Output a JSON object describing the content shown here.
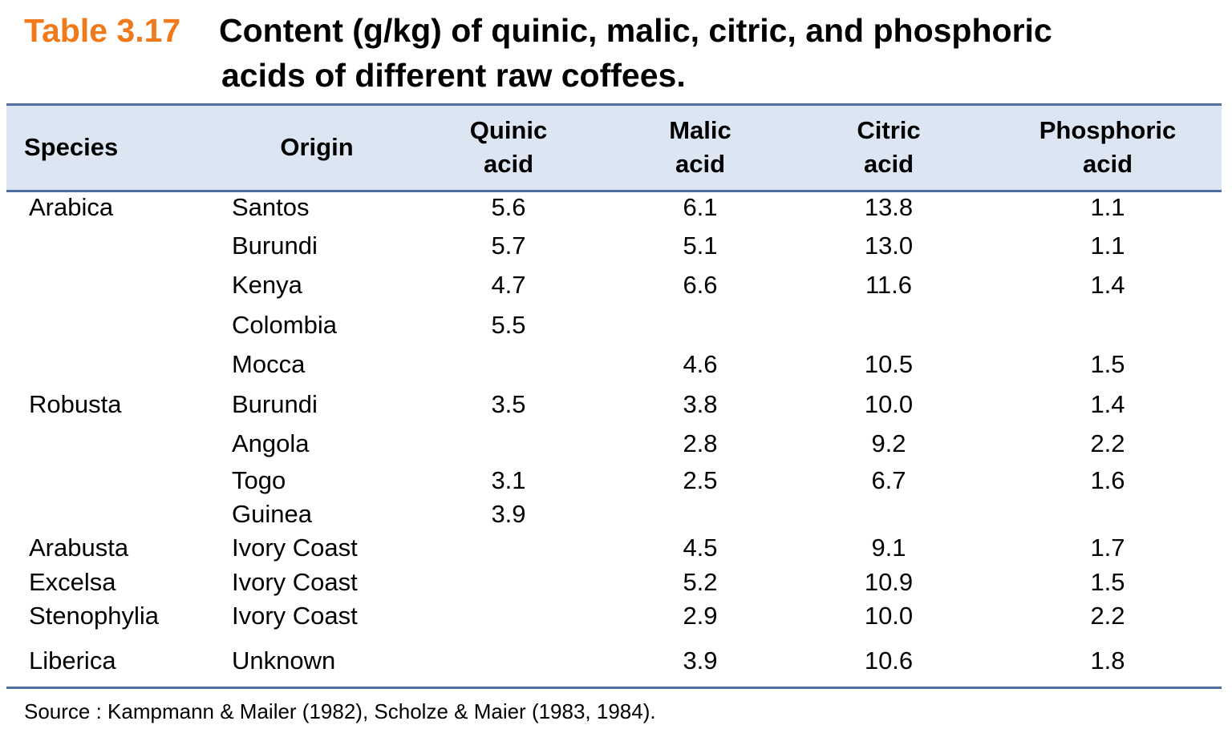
{
  "header": {
    "label": "Table 3.17",
    "title": [
      "Content (g/kg) of quinic, malic, citric, and phosphoric",
      "acids of different raw coffees."
    ]
  },
  "table": {
    "columns": [
      "Species",
      "Origin",
      "Quinic acid",
      "Malic acid",
      "Citric acid",
      "Phosphoric acid"
    ],
    "rows": [
      [
        "Arabica",
        "Santos",
        "5.6",
        "6.1",
        "13.8",
        "1.1"
      ],
      [
        null,
        "Burundi",
        "5.7",
        "5.1",
        "13.0",
        "1.1"
      ],
      [
        null,
        "Kenya",
        "4.7",
        "6.6",
        "11.6",
        "1.4"
      ],
      [
        null,
        "Colombia",
        "5.5",
        null,
        null,
        null
      ],
      [
        null,
        "Mocca",
        null,
        "4.6",
        "10.5",
        "1.5"
      ],
      [
        "Robusta",
        "Burundi",
        "3.5",
        "3.8",
        "10.0",
        "1.4"
      ],
      [
        null,
        "Angola",
        null,
        "2.8",
        "9.2",
        "2.2"
      ],
      [
        null,
        "Togo",
        "3.1",
        "2.5",
        "6.7",
        "1.6"
      ],
      [
        null,
        "Guinea",
        "3.9",
        null,
        null,
        null
      ],
      [
        "Arabusta",
        "Ivory Coast",
        null,
        "4.5",
        "9.1",
        "1.7"
      ],
      [
        "Excelsa",
        "Ivory Coast",
        null,
        "5.2",
        "10.9",
        "1.5"
      ],
      [
        "Stenophylia",
        "Ivory Coast",
        null,
        "2.9",
        "10.0",
        "2.2"
      ],
      [
        "Liberica",
        "Unknown",
        null,
        "3.9",
        "10.6",
        "1.8"
      ]
    ]
  },
  "source": "Source : Kampmann & Mailer (1982), Scholze & Maier (1983, 1984)."
}
